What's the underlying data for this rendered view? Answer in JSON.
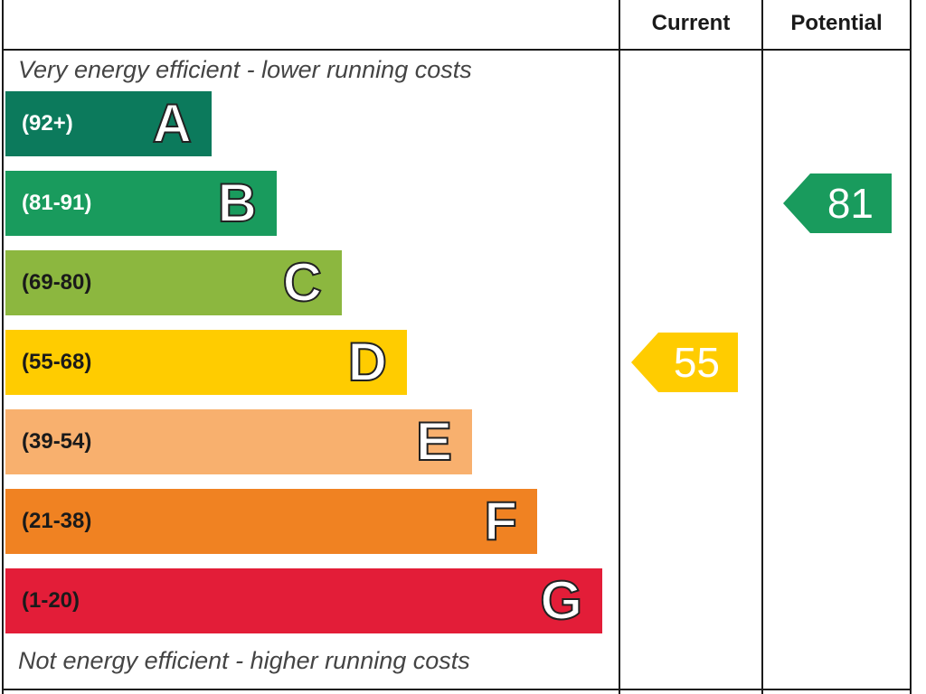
{
  "headers": {
    "current": "Current",
    "potential": "Potential"
  },
  "captions": {
    "top": "Very energy efficient - lower running costs",
    "bottom": "Not energy efficient - higher running costs"
  },
  "chart_data": {
    "type": "bar",
    "title": "",
    "categories": [
      "A",
      "B",
      "C",
      "D",
      "E",
      "F",
      "G"
    ],
    "bands": [
      {
        "letter": "A",
        "range": "(92+)",
        "min": 92,
        "max": 100,
        "color": "#0c7a5c",
        "range_color": "#ffffff"
      },
      {
        "letter": "B",
        "range": "(81-91)",
        "min": 81,
        "max": 91,
        "color": "#199b5d",
        "range_color": "#ffffff"
      },
      {
        "letter": "C",
        "range": "(69-80)",
        "min": 69,
        "max": 80,
        "color": "#8cb73f",
        "range_color": "#1a1a1a"
      },
      {
        "letter": "D",
        "range": "(55-68)",
        "min": 55,
        "max": 68,
        "color": "#ffcc00",
        "range_color": "#1a1a1a"
      },
      {
        "letter": "E",
        "range": "(39-54)",
        "min": 39,
        "max": 54,
        "color": "#f8b06e",
        "range_color": "#1a1a1a"
      },
      {
        "letter": "F",
        "range": "(21-38)",
        "min": 21,
        "max": 38,
        "color": "#f08222",
        "range_color": "#1a1a1a"
      },
      {
        "letter": "G",
        "range": "(1-20)",
        "min": 1,
        "max": 20,
        "color": "#e31d38",
        "range_color": "#1a1a1a"
      }
    ],
    "series": [
      {
        "name": "Current",
        "value": 55,
        "band": "D",
        "color": "#ffcc00"
      },
      {
        "name": "Potential",
        "value": 81,
        "band": "B",
        "color": "#199b5d"
      }
    ]
  }
}
